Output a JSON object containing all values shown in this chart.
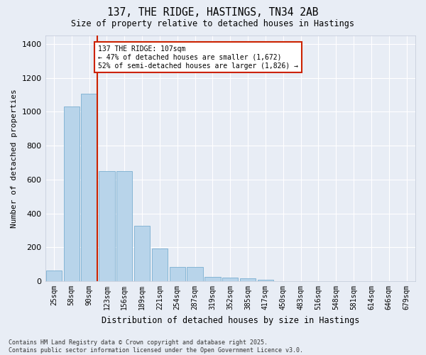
{
  "title": "137, THE RIDGE, HASTINGS, TN34 2AB",
  "subtitle": "Size of property relative to detached houses in Hastings",
  "xlabel": "Distribution of detached houses by size in Hastings",
  "ylabel": "Number of detached properties",
  "categories": [
    "25sqm",
    "58sqm",
    "90sqm",
    "123sqm",
    "156sqm",
    "189sqm",
    "221sqm",
    "254sqm",
    "287sqm",
    "319sqm",
    "352sqm",
    "385sqm",
    "417sqm",
    "450sqm",
    "483sqm",
    "516sqm",
    "548sqm",
    "581sqm",
    "614sqm",
    "646sqm",
    "679sqm"
  ],
  "values": [
    65,
    1030,
    1105,
    650,
    650,
    325,
    195,
    85,
    85,
    25,
    20,
    18,
    10,
    0,
    0,
    0,
    0,
    0,
    0,
    0,
    0
  ],
  "bar_color": "#b8d4ea",
  "bar_edge_color": "#7aaed0",
  "background_color": "#e8edf5",
  "grid_color": "#ffffff",
  "vline_color": "#cc2200",
  "annotation_text": "137 THE RIDGE: 107sqm\n← 47% of detached houses are smaller (1,672)\n52% of semi-detached houses are larger (1,826) →",
  "annotation_box_color": "#ffffff",
  "annotation_box_edge": "#cc2200",
  "footer_text": "Contains HM Land Registry data © Crown copyright and database right 2025.\nContains public sector information licensed under the Open Government Licence v3.0.",
  "ylim": [
    0,
    1450
  ],
  "yticks": [
    0,
    200,
    400,
    600,
    800,
    1000,
    1200,
    1400
  ]
}
